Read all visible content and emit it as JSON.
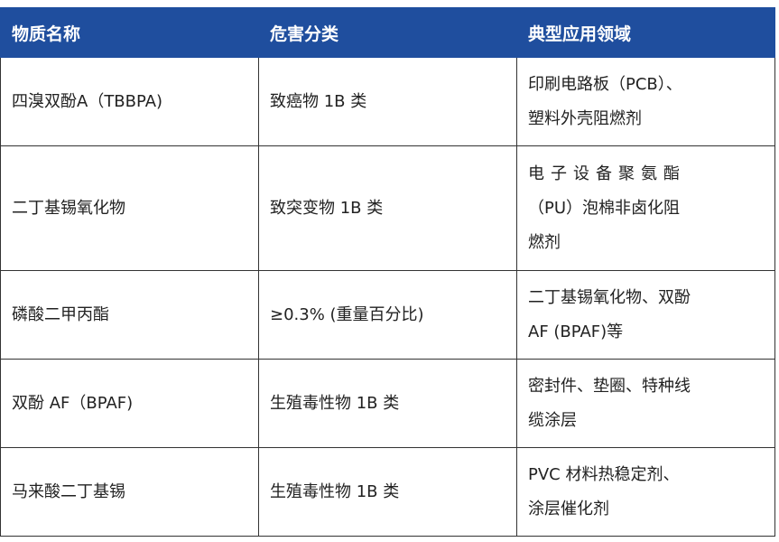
{
  "header": {
    "col1": "物质名称",
    "col2": "危害分类",
    "col3": "典型应用领域"
  },
  "colors": {
    "header_bg": "#1f4e9e",
    "header_text": "#ffffff"
  },
  "rows": [
    {
      "name": "四溴双酚A（TBBPA)",
      "hazard": "致癌物 1B 类",
      "uses": [
        "印刷电路板（PCB）、",
        "塑料外壳阻燃剂"
      ]
    },
    {
      "name": "二丁基锡氧化物",
      "hazard": "致突变物 1B 类",
      "uses": [
        "电子设备聚氨酯",
        "（PU）泡棉非卤化阻",
        "燃剂"
      ]
    },
    {
      "name": "磷酸二甲丙酯",
      "hazard": "≥0.3% (重量百分比)",
      "uses": [
        "二丁基锡氧化物、双酚",
        "AF (BPAF)等"
      ]
    },
    {
      "name": "双酚 AF（BPAF)",
      "hazard": "生殖毒性物 1B 类",
      "uses": [
        "密封件、垫圈、特种线",
        "缆涂层"
      ]
    },
    {
      "name": "马来酸二丁基锡",
      "hazard": "生殖毒性物 1B 类",
      "uses": [
        "PVC 材料热稳定剂、",
        "涂层催化剂"
      ]
    }
  ]
}
